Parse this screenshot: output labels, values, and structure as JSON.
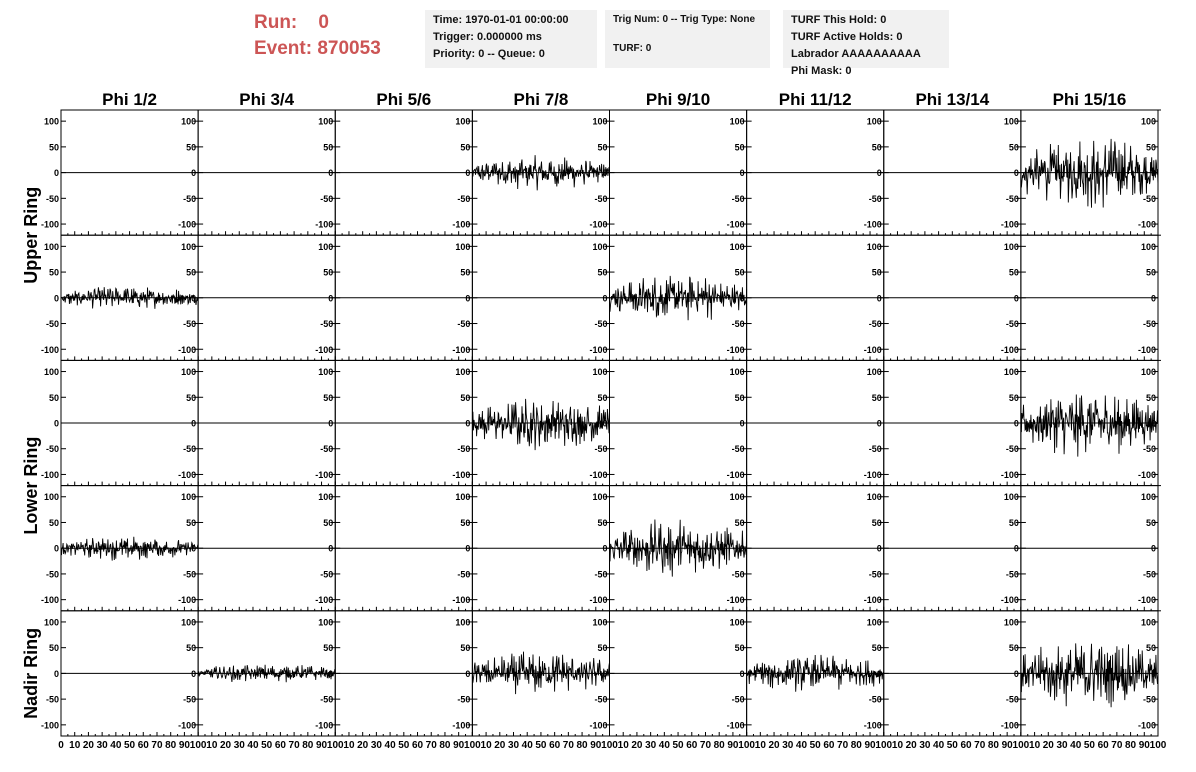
{
  "header": {
    "run_label": "Run:",
    "run_value": "0",
    "event_label": "Event:",
    "event_value": "870053"
  },
  "info_box_time": {
    "time": "Time: 1970-01-01 00:00:00",
    "trigger": "Trigger: 0.000000 ms",
    "priority": "Priority: 0 -- Queue: 0"
  },
  "info_box_trig": {
    "trig": "Trig Num: 0 -- Trig Type: None",
    "turf": "TURF: 0"
  },
  "info_box_turf": {
    "this_hold": "TURF This Hold: 0",
    "active_holds": "TURF Active Holds: 0",
    "labrador": "Labrador AAAAAAAAAA",
    "phi_mask": "Phi Mask: 0"
  },
  "chart_data": {
    "type": "line",
    "columns": [
      "Phi 1/2",
      "Phi 3/4",
      "Phi 5/6",
      "Phi 7/8",
      "Phi 9/10",
      "Phi 11/12",
      "Phi 13/14",
      "Phi 15/16"
    ],
    "rings": [
      "Upper Ring",
      "Lower Ring",
      "Nadir Ring"
    ],
    "xlim": [
      0,
      100
    ],
    "ylim": [
      -110,
      110
    ],
    "y_ticks": [
      -100,
      -50,
      0,
      50,
      100
    ],
    "x_ticks": [
      0,
      10,
      20,
      30,
      40,
      50,
      60,
      70,
      80,
      90,
      100
    ],
    "grid": false,
    "rows": [
      {
        "ring": "Upper Ring",
        "amplitudes": [
          0,
          0,
          0,
          35,
          0,
          0,
          0,
          75
        ]
      },
      {
        "ring": "Upper Ring",
        "amplitudes": [
          25,
          0,
          0,
          0,
          50,
          0,
          0,
          0
        ]
      },
      {
        "ring": "Lower Ring",
        "amplitudes": [
          0,
          0,
          0,
          55,
          0,
          0,
          0,
          70
        ]
      },
      {
        "ring": "Lower Ring",
        "amplitudes": [
          25,
          0,
          0,
          0,
          60,
          0,
          0,
          0
        ]
      },
      {
        "ring": "Nadir Ring",
        "amplitudes": [
          0,
          20,
          0,
          45,
          0,
          40,
          0,
          70
        ]
      }
    ]
  }
}
